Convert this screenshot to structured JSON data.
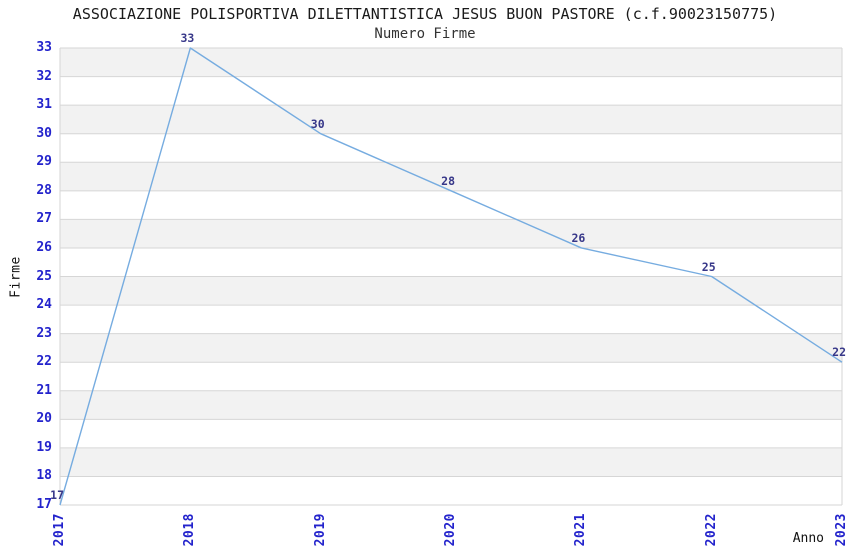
{
  "chart_data": {
    "type": "line",
    "title": "ASSOCIAZIONE POLISPORTIVA DILETTANTISTICA JESUS BUON PASTORE (c.f.90023150775)",
    "subtitle": "Numero Firme",
    "xlabel": "Anno",
    "ylabel": "Firme",
    "categories": [
      "2017",
      "2018",
      "2019",
      "2020",
      "2021",
      "2022",
      "2023"
    ],
    "values": [
      17,
      33,
      30,
      28,
      26,
      25,
      22
    ],
    "data_labels": [
      "17",
      "33",
      "30",
      "28",
      "26",
      "25",
      "22"
    ],
    "y_ticks": [
      17,
      18,
      19,
      20,
      21,
      22,
      23,
      24,
      25,
      26,
      27,
      28,
      29,
      30,
      31,
      32,
      33
    ],
    "ylim": [
      17,
      33
    ],
    "grid": true,
    "legend_position": "none",
    "colors": {
      "line": "#76ACE0",
      "band": "#F2F2F2",
      "gridline": "#D6D6D6",
      "plot_border": "#D6D6D6",
      "tick_label": "#2323CC",
      "data_label": "#373789",
      "title_text": "#1A1A1A",
      "background": "#FFFFFF"
    }
  }
}
